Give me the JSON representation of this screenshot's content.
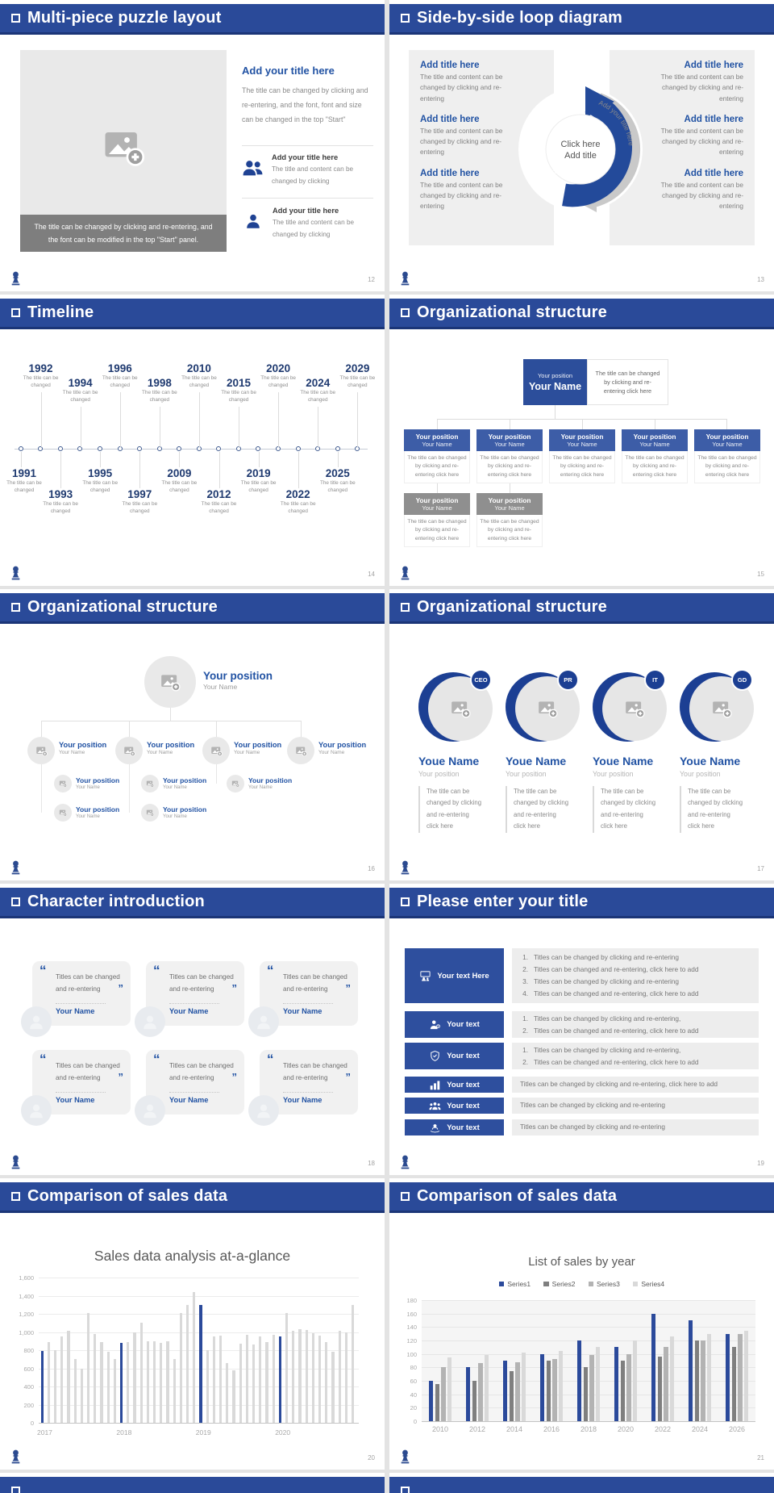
{
  "colors": {
    "header_blue": "#2a4a99",
    "header_border": "#1b3577",
    "accent_blue": "#2152a3",
    "navy": "#1f3a70",
    "box_blue": "#3d5da7",
    "top_box_blue": "#2c4e9b",
    "box_gray": "#8f8f8f",
    "crescent_blue": "#1c3f93",
    "button_blue": "#2e4f9e",
    "bar_blue": "#2b4a9b",
    "panel_gray": "#efefef",
    "caption_gray": "#7e7e7e"
  },
  "slides": [
    {
      "id": "puzzle",
      "title": "Multi-piece puzzle layout",
      "page_no": "12",
      "caption": "The title can be changed by clicking and re-entering, and the font can be modified in the top \"Start\" panel.",
      "right_title": "Add your title here",
      "right_body": "The title can be changed by clicking and re-entering, and the font, font and size can be changed in the top \"Start\"",
      "items": [
        {
          "title": "Add your title here",
          "body": "The title and content can be changed by clicking"
        },
        {
          "title": "Add your title here",
          "body": "The title and content can be changed by clicking"
        }
      ]
    },
    {
      "id": "loop",
      "title": "Side-by-side loop diagram",
      "page_no": "13",
      "entry_title": "Add title here",
      "entry_body": "The title and content can be changed by clicking and re-entering",
      "center_line1": "Click here",
      "center_line2": "Add title",
      "arc_label": "Add your title here"
    },
    {
      "id": "timeline",
      "title": "Timeline",
      "page_no": "14",
      "item_body": "The title can be changed",
      "years": [
        "1991",
        "1992",
        "1993",
        "1994",
        "1995",
        "1996",
        "1997",
        "1998",
        "2009",
        "2010",
        "2012",
        "2015",
        "2019",
        "2020",
        "2022",
        "2024",
        "2025",
        "2029"
      ]
    },
    {
      "id": "org-boxes",
      "title": "Organizational structure",
      "page_no": "15",
      "position_label": "Your position",
      "name_label": "Your Name",
      "top_note": "The title can be changed by clicking and re-entering click here",
      "box_body": "The title can be changed by clicking and re-entering click here"
    },
    {
      "id": "org-circles",
      "title": "Organizational structure",
      "page_no": "16",
      "position_label": "Your position",
      "name_label": "Your Name"
    },
    {
      "id": "org-badges",
      "title": "Organizational structure",
      "page_no": "17",
      "badges": [
        "CEO",
        "PR",
        "IT",
        "GD"
      ],
      "name": "Youe Name",
      "position": "Your position",
      "body_lines": [
        "The title can be",
        "changed by clicking",
        "and re-entering",
        "click here"
      ]
    },
    {
      "id": "characters",
      "title": "Character introduction",
      "page_no": "18",
      "open_quote": "“",
      "close_quote": "”",
      "quote": "Titles can be changed and re-entering",
      "name": "Your Name"
    },
    {
      "id": "list",
      "title": "Please enter your title",
      "page_no": "19",
      "rows": [
        {
          "label": "Your text Here",
          "icon": "pres",
          "numbered": true,
          "lines": [
            "Titles can be changed by clicking and re-entering",
            "Titles can be changed and re-entering, click here to add",
            "Titles can be changed by clicking and re-entering",
            "Titles can be changed and re-entering, click here to add"
          ]
        },
        {
          "label": "Your text",
          "icon": "pgear",
          "numbered": true,
          "lines": [
            "Titles can be changed by clicking and re-entering,",
            "Titles can be changed and re-entering, click here to add"
          ]
        },
        {
          "label": "Your text",
          "icon": "shield",
          "numbered": true,
          "lines": [
            "Titles can be changed by clicking and re-entering,",
            "Titles can be changed and re-entering, click here to add"
          ]
        },
        {
          "label": "Your text",
          "icon": "bars",
          "numbered": false,
          "lines": [
            "Titles can be changed by clicking and re-entering, click here to add"
          ]
        },
        {
          "label": "Your text",
          "icon": "group",
          "numbered": false,
          "lines": [
            "Titles can be changed by clicking and re-entering"
          ]
        },
        {
          "label": "Your text",
          "icon": "hand",
          "numbered": false,
          "lines": [
            "Titles can be changed by clicking and re-entering"
          ]
        }
      ]
    },
    {
      "id": "chart1",
      "title": "Comparison of sales data",
      "page_no": "20"
    },
    {
      "id": "chart2",
      "title": "Comparison of sales data",
      "page_no": "21"
    }
  ],
  "chart_data": [
    {
      "type": "bar",
      "title": "Sales data analysis at-a-glance",
      "xlabel": "",
      "ylabel": "",
      "ylim": [
        0,
        1600
      ],
      "ytick_step": 200,
      "grid": true,
      "highlight_color": "#2b4a9b",
      "bar_color": "#d9d9d9",
      "note": "first bar of each year group is highlighted blue",
      "groups": [
        {
          "year": "2017",
          "values": [
            790,
            890,
            800,
            950,
            1010,
            700,
            600,
            1210,
            980,
            890,
            780,
            700
          ]
        },
        {
          "year": "2018",
          "values": [
            880,
            890,
            1000,
            1100,
            900,
            900,
            880,
            900,
            700,
            1210,
            1300,
            1440
          ]
        },
        {
          "year": "2019",
          "values": [
            1300,
            800,
            950,
            960,
            660,
            580,
            870,
            970,
            860,
            950,
            890,
            970
          ]
        },
        {
          "year": "2020",
          "values": [
            950,
            1210,
            1010,
            1030,
            1020,
            990,
            960,
            890,
            780,
            1010,
            1000,
            1300
          ]
        }
      ]
    },
    {
      "type": "bar",
      "title": "List of sales by year",
      "xlabel": "",
      "ylabel": "",
      "ylim": [
        0,
        180
      ],
      "ytick_step": 20,
      "grid": true,
      "legend_position": "top",
      "categories": [
        "2010",
        "2012",
        "2014",
        "2016",
        "2018",
        "2020",
        "2022",
        "2024",
        "2026"
      ],
      "series": [
        {
          "name": "Series1",
          "color": "#2b4a9b",
          "values": [
            60,
            80,
            90,
            100,
            120,
            110,
            160,
            150,
            130
          ]
        },
        {
          "name": "Series2",
          "color": "#7f7f7f",
          "values": [
            55,
            60,
            75,
            90,
            80,
            90,
            96,
            120,
            110
          ]
        },
        {
          "name": "Series3",
          "color": "#b3b3b3",
          "values": [
            80,
            86,
            88,
            92,
            98,
            100,
            110,
            120,
            130
          ]
        },
        {
          "name": "Series4",
          "color": "#d9d9d9",
          "values": [
            95,
            99,
            102,
            105,
            110,
            120,
            126,
            130,
            135
          ]
        }
      ]
    }
  ]
}
